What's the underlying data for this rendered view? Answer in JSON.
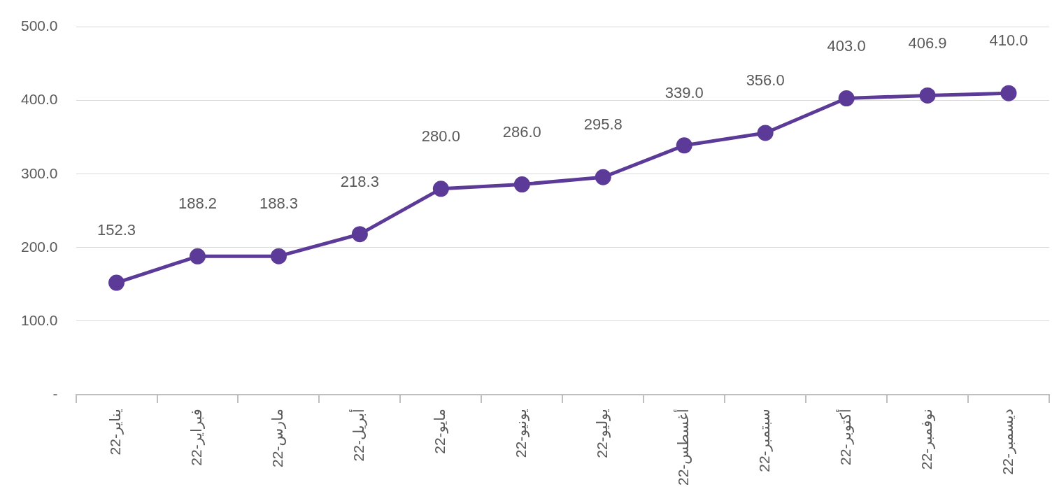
{
  "chart_data": {
    "type": "line",
    "categories": [
      "يناير-22",
      "فبراير-22",
      "مارس-22",
      "أبريل-22",
      "مايو-22",
      "يونيو-22",
      "يوليو-22",
      "أغسطس-22",
      "سبتمبر-22",
      "أكتوبر-22",
      "نوفمبر-22",
      "ديسمبر-22"
    ],
    "series": [
      {
        "color": "#5b3a98",
        "values": [
          152.3,
          188.2,
          188.3,
          218.3,
          280.0,
          286.0,
          295.8,
          339.0,
          356.0,
          403.0,
          406.9,
          410.0
        ],
        "value_labels": [
          "152.3",
          "188.2",
          "188.3",
          "218.3",
          "280.0",
          "286.0",
          "295.8",
          "339.0",
          "356.0",
          "403.0",
          "406.9",
          "410.0"
        ]
      }
    ],
    "ylim": [
      0,
      500
    ],
    "yticks": [
      {
        "value": 0,
        "label": "-"
      },
      {
        "value": 100,
        "label": "100.0"
      },
      {
        "value": 200,
        "label": "200.0"
      },
      {
        "value": 300,
        "label": "300.0"
      },
      {
        "value": 400,
        "label": "400.0"
      },
      {
        "value": 500,
        "label": "500.0"
      }
    ],
    "grid": "y",
    "legend": false,
    "marker": "circle",
    "line_style": "solid"
  }
}
